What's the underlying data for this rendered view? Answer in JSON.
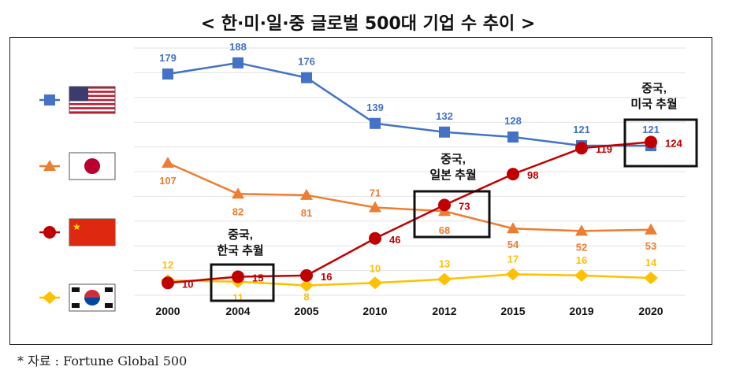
{
  "chart_data": {
    "type": "line",
    "title": "< 한·미·일·중 글로벌 500대 기업 수 추이 >",
    "categories": [
      "2000",
      "2004",
      "2005",
      "2010",
      "2012",
      "2015",
      "2019",
      "2020"
    ],
    "series": [
      {
        "key": "us",
        "flag": "us-flag",
        "color": "#4472C4",
        "marker": "square",
        "values": [
          179,
          188,
          176,
          139,
          132,
          128,
          121,
          121
        ]
      },
      {
        "key": "japan",
        "flag": "japan-flag",
        "color": "#ED7D31",
        "marker": "triangle",
        "values": [
          107,
          82,
          81,
          71,
          68,
          54,
          52,
          53
        ]
      },
      {
        "key": "china",
        "flag": "china-flag",
        "color": "#C00000",
        "marker": "circle",
        "values": [
          10,
          15,
          16,
          46,
          73,
          98,
          119,
          124
        ]
      },
      {
        "key": "korea",
        "flag": "korea-flag",
        "color": "#FFC000",
        "marker": "diamond",
        "values": [
          12,
          11,
          8,
          10,
          13,
          17,
          16,
          14
        ]
      }
    ],
    "annotations": [
      {
        "lines": [
          "중국,",
          "한국 추월"
        ],
        "category": "2004"
      },
      {
        "lines": [
          "중국,",
          "일본 추월"
        ],
        "category": "2012"
      },
      {
        "lines": [
          "중국,",
          "미국 추월"
        ],
        "category": "2020"
      }
    ],
    "grid": true,
    "legend": "left",
    "ylim": [
      0,
      200
    ]
  },
  "source": "* 자료 : Fortune Global 500"
}
